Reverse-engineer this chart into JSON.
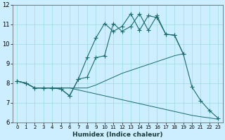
{
  "xlabel": "Humidex (Indice chaleur)",
  "bg_color": "#cceeff",
  "line_color": "#1a6b6b",
  "grid_color": "#99dddd",
  "xlim": [
    -0.5,
    23.5
  ],
  "ylim": [
    6,
    12
  ],
  "yticks": [
    6,
    7,
    8,
    9,
    10,
    11,
    12
  ],
  "xticks": [
    0,
    1,
    2,
    3,
    4,
    5,
    6,
    7,
    8,
    9,
    10,
    11,
    12,
    13,
    14,
    15,
    16,
    17,
    18,
    19,
    20,
    21,
    22,
    23
  ],
  "series": [
    [
      8.1,
      8.0,
      7.75,
      7.75,
      7.75,
      7.7,
      7.35,
      8.2,
      9.3,
      10.3,
      11.05,
      10.65,
      10.9,
      11.55,
      10.7,
      11.45,
      11.35,
      10.5,
      10.45,
      9.5,
      7.8,
      7.1,
      6.6,
      6.2
    ],
    [
      8.1,
      8.0,
      7.75,
      7.75,
      7.75,
      7.7,
      7.35,
      8.2,
      8.3,
      9.3,
      9.4,
      11.05,
      10.65,
      10.9,
      11.55,
      10.7,
      11.45,
      10.5,
      10.45,
      9.5,
      null,
      null,
      null,
      null
    ],
    [
      8.1,
      8.0,
      7.75,
      7.75,
      7.75,
      7.75,
      7.75,
      7.75,
      7.75,
      7.9,
      8.1,
      8.3,
      8.5,
      8.65,
      8.8,
      8.95,
      9.1,
      9.25,
      9.4,
      9.5,
      null,
      null,
      null,
      null
    ],
    [
      8.1,
      8.0,
      7.75,
      7.75,
      7.75,
      7.75,
      7.75,
      7.65,
      7.55,
      7.45,
      7.35,
      7.25,
      7.15,
      7.05,
      6.95,
      6.85,
      6.75,
      6.65,
      6.55,
      6.45,
      6.35,
      6.28,
      6.22,
      6.15
    ]
  ],
  "has_markers": [
    true,
    true,
    false,
    false
  ],
  "linewidths": [
    0.8,
    0.8,
    0.7,
    0.7
  ],
  "marker_size": 2.0,
  "tick_fontsize_x": 5.0,
  "tick_fontsize_y": 6.0,
  "xlabel_fontsize": 6.5
}
